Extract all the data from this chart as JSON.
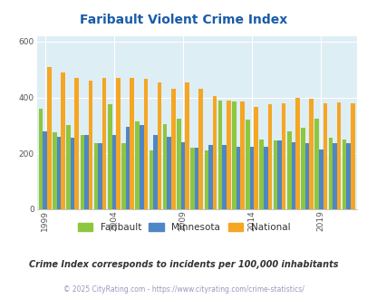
{
  "title": "Faribault Violent Crime Index",
  "years": [
    1999,
    2000,
    2001,
    2002,
    2003,
    2004,
    2005,
    2006,
    2007,
    2008,
    2009,
    2010,
    2011,
    2012,
    2013,
    2014,
    2015,
    2016,
    2017,
    2018,
    2019,
    2020,
    2021
  ],
  "faribault": [
    360,
    275,
    300,
    265,
    235,
    375,
    235,
    315,
    210,
    305,
    325,
    220,
    210,
    390,
    385,
    320,
    250,
    245,
    280,
    290,
    325,
    255,
    250
  ],
  "minnesota": [
    280,
    260,
    255,
    265,
    235,
    265,
    295,
    300,
    265,
    260,
    240,
    220,
    230,
    230,
    225,
    225,
    225,
    245,
    240,
    235,
    215,
    235,
    235
  ],
  "national": [
    510,
    490,
    470,
    460,
    470,
    470,
    470,
    465,
    455,
    430,
    455,
    430,
    405,
    390,
    385,
    365,
    375,
    380,
    400,
    395,
    380,
    383,
    380
  ],
  "bar_color_faribault": "#8dc63f",
  "bar_color_minnesota": "#4f86c6",
  "bar_color_national": "#f5a623",
  "bg_color": "#deeef5",
  "ylim": [
    0,
    620
  ],
  "yticks": [
    0,
    200,
    400,
    600
  ],
  "xtick_years": [
    1999,
    2004,
    2009,
    2014,
    2019
  ],
  "subtitle": "Crime Index corresponds to incidents per 100,000 inhabitants",
  "footer": "© 2025 CityRating.com - https://www.cityrating.com/crime-statistics/",
  "title_color": "#1a5ca8",
  "subtitle_color": "#333333",
  "footer_color": "#9999bb",
  "legend_labels": [
    "Faribault",
    "Minnesota",
    "National"
  ]
}
